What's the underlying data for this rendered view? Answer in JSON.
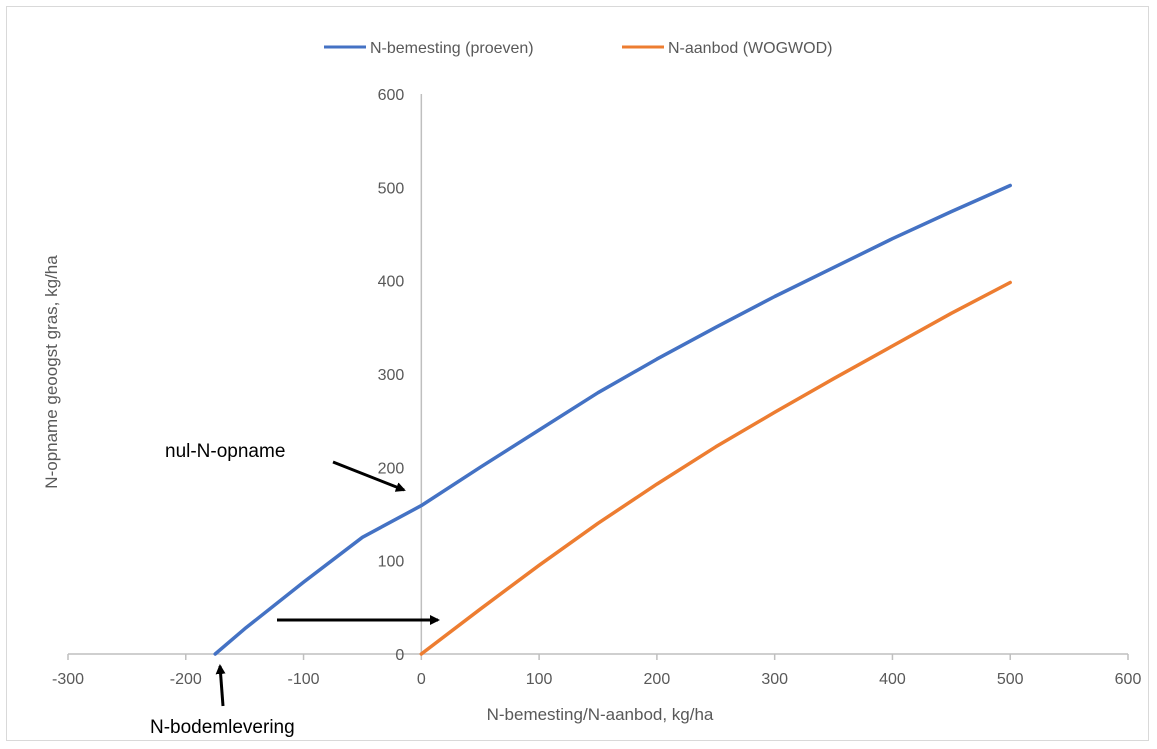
{
  "chart_data": {
    "type": "line",
    "title": "",
    "xlabel": "N-bemesting/N-aanbod, kg/ha",
    "ylabel": "N-opname geoogst gras, kg/ha",
    "xlim": [
      -300,
      600
    ],
    "ylim": [
      0,
      600
    ],
    "x_ticks": [
      -300,
      -200,
      -100,
      0,
      100,
      200,
      300,
      400,
      500,
      600
    ],
    "y_ticks": [
      0,
      100,
      200,
      300,
      400,
      500,
      600
    ],
    "grid": false,
    "legend_position": "top",
    "series": [
      {
        "name": "N-bemesting (proeven)",
        "color": "#4472C4",
        "x": [
          -175,
          -150,
          -100,
          -50,
          0,
          50,
          100,
          150,
          200,
          250,
          300,
          350,
          400,
          450,
          500
        ],
        "y": [
          0,
          27,
          77,
          125,
          159,
          200,
          240,
          280,
          316,
          350,
          383,
          414,
          445,
          474,
          502
        ]
      },
      {
        "name": "N-aanbod (WOGWOD)",
        "color": "#ED7D31",
        "x": [
          0,
          50,
          100,
          150,
          200,
          250,
          300,
          350,
          400,
          450,
          500
        ],
        "y": [
          0,
          48,
          95,
          140,
          182,
          222,
          259,
          295,
          330,
          365,
          398
        ]
      }
    ],
    "annotations": [
      {
        "text": "nul-N-opname"
      },
      {
        "text": "N-bodemlevering"
      }
    ]
  }
}
